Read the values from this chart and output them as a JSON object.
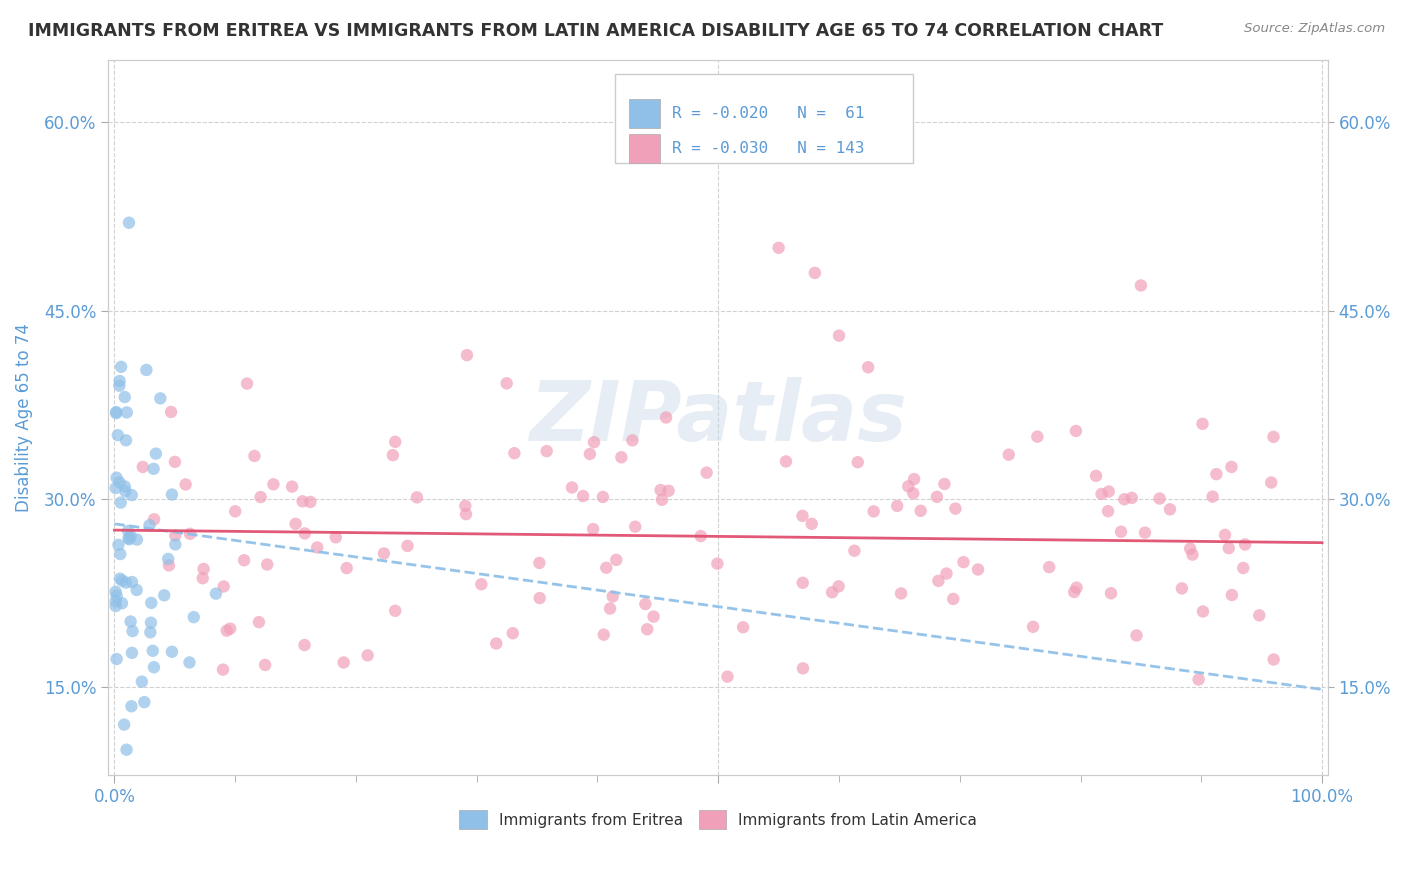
{
  "title": "IMMIGRANTS FROM ERITREA VS IMMIGRANTS FROM LATIN AMERICA DISABILITY AGE 65 TO 74 CORRELATION CHART",
  "source_text": "Source: ZipAtlas.com",
  "ylabel": "Disability Age 65 to 74",
  "x_min": 0.0,
  "x_max": 1.0,
  "y_min": 0.08,
  "y_max": 0.65,
  "y_ticks": [
    0.15,
    0.3,
    0.45,
    0.6
  ],
  "y_tick_labels": [
    "15.0%",
    "30.0%",
    "45.0%",
    "60.0%"
  ],
  "right_y_ticks": [
    0.15,
    0.3,
    0.45,
    0.6
  ],
  "right_y_tick_labels": [
    "15.0%",
    "30.0%",
    "45.0%",
    "60.0%"
  ],
  "x_tick_labels_bottom": [
    "0.0%",
    "100.0%"
  ],
  "legend_line1": "R = -0.020   N =  61",
  "legend_line2": "R = -0.030   N = 143",
  "legend_label1": "Immigrants from Eritrea",
  "legend_label2": "Immigrants from Latin America",
  "color_eritrea_dot": "#90c0e8",
  "color_eritrea_trend": "#90c0e8",
  "color_latin_dot": "#f0a0b8",
  "color_latin_trend": "#e05070",
  "watermark": "ZIPatlas",
  "background_color": "#ffffff",
  "grid_color": "#cccccc",
  "title_color": "#333333",
  "axis_label_color": "#5b9bd5",
  "legend_text_color": "#5b9bd5",
  "source_color": "#888888",
  "eritrea_trend_start_y": 0.28,
  "eritrea_trend_end_y": 0.148,
  "latin_trend_start_y": 0.275,
  "latin_trend_end_y": 0.265
}
